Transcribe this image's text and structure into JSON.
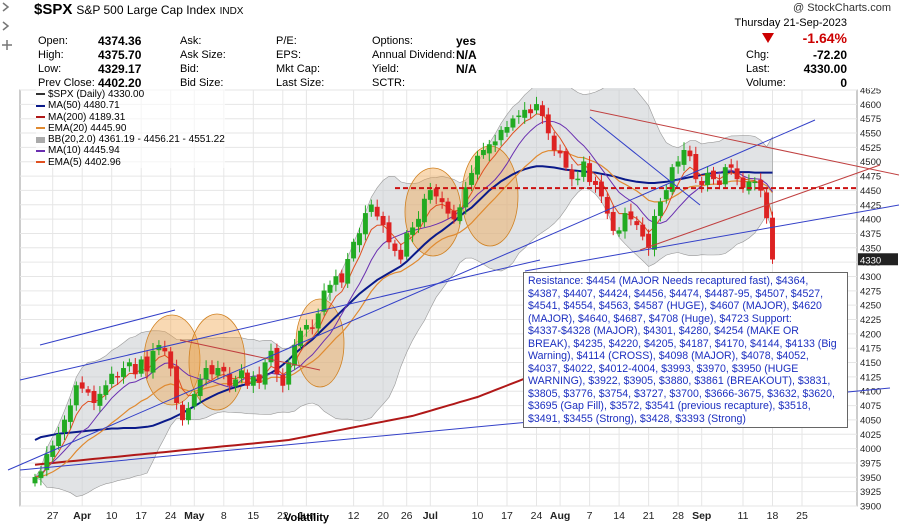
{
  "header": {
    "symbol": "$SPX",
    "name": "S&P 500 Large Cap Index",
    "exchange": "INDX",
    "copyright": "@ StockCharts.com",
    "date": "Thursday  21-Sep-2023",
    "change_pct": "-1.64%",
    "fields": {
      "open_label": "Open:",
      "open_value": "4374.36",
      "high_label": "High:",
      "high_value": "4375.70",
      "low_label": "Low:",
      "low_value": "4329.17",
      "prevclose_label": "Prev Close:",
      "prevclose_value": "4402.20",
      "ask_label": "Ask:",
      "asksize_label": "Ask Size:",
      "bid_label": "Bid:",
      "bidsize_label": "Bid Size:",
      "pe_label": "P/E:",
      "eps_label": "EPS:",
      "mktcap_label": "Mkt Cap:",
      "lastsize_label": "Last Size:",
      "options_label": "Options:",
      "options_value": "yes",
      "dividend_label": "Annual Dividend:",
      "dividend_value": "N/A",
      "yield_label": "Yield:",
      "yield_value": "N/A",
      "sctr_label": "SCTR:",
      "chg_label": "Chg:",
      "chg_value": "-72.20",
      "last_label": "Last:",
      "last_value": "4330.00",
      "volume_label": "Volume:",
      "volume_value": "0"
    }
  },
  "legend": {
    "symbol": "$SPX (Daily) 4330.00",
    "ma50": "MA(50) 4480.71",
    "ma200": "MA(200) 4189.31",
    "ema20": "EMA(20) 4445.90",
    "bb": "BB(20,2.0) 4361.19 - 4456.21 - 4551.22",
    "ma10": "MA(10) 4445.94",
    "ema5": "EMA(5) 4402.96"
  },
  "annotation_box": "Resistance: $4454 (MAJOR Needs recaptured fast), $4364, $4387, $4407, $4424, $4456, $4474, $4487-95, $4507, $4527, $4541, $4554, $4563, $4587 (HUGE), $4607 (MAJOR), $4620 (MAJOR), $4640, $4687, $4708 (Huge), $4723 Support: $4337-$4328 (MAJOR), $4301, $4280, $4254 (MAKE OR BREAK), $4235, $4220, $4205, $4187, $4170, $4144, $4133 (Big Warning), $4114 (CROSS), $4098 (MAJOR), $4078, $4052, $4037, $4022, $4012-4004, $3993, $3970, $3950 (HUGE WARNING), $3922, $3905, $3880, $3861 (BREAKOUT), $3831, $3805, $3776, $3754, $3727, $3700, $3666-3675, $3632, $3620, $3695 (Gap Fill), $3572, $3541 (previous recapture), $3518, $3491, $3455 (Strong), $3428, $3393 (Strong)",
  "volatility_label": "Volatility",
  "colors": {
    "up": "#22aa22",
    "down": "#dd2222",
    "ma50": "#0a1a8a",
    "ma200": "#b01818",
    "ema20": "#e08a30",
    "bb": "#999999",
    "ma10": "#6a2fb0",
    "ema5": "#e05020",
    "trend_blue": "#3340c8",
    "trend_red": "#c04040",
    "circle": "#f0a040"
  },
  "chart_data": {
    "type": "candlestick",
    "title": "$SPX (Daily) 4330.00",
    "ylim": [
      3900,
      4625
    ],
    "y_ticks": [
      3900,
      3925,
      3950,
      3975,
      4000,
      4025,
      4050,
      4075,
      4100,
      4125,
      4150,
      4175,
      4200,
      4225,
      4250,
      4275,
      4300,
      4325,
      4350,
      4375,
      4400,
      4425,
      4450,
      4475,
      4500,
      4525,
      4550,
      4575,
      4600,
      4625
    ],
    "x_tick_labels": [
      "27",
      "Apr",
      "10",
      "17",
      "24",
      "May",
      "8",
      "15",
      "22",
      "Jun",
      "12",
      "20",
      "26",
      "Jul",
      "10",
      "17",
      "24",
      "Aug",
      "7",
      "14",
      "21",
      "28",
      "Sep",
      "11",
      "18",
      "25"
    ],
    "x_tick_index": [
      3,
      8,
      13,
      18,
      23,
      27,
      32,
      37,
      42,
      46,
      54,
      59,
      63,
      67,
      75,
      80,
      85,
      89,
      94,
      99,
      104,
      109,
      113,
      120,
      125,
      130
    ],
    "closes": [
      3950,
      3960,
      3990,
      4005,
      4025,
      4050,
      4075,
      4110,
      4105,
      4098,
      4080,
      4095,
      4110,
      4130,
      4125,
      4140,
      4150,
      4130,
      4155,
      4135,
      4170,
      4180,
      4170,
      4140,
      4080,
      4050,
      4070,
      4095,
      4120,
      4140,
      4130,
      4140,
      4135,
      4110,
      4120,
      4136,
      4110,
      4125,
      4115,
      4150,
      4170,
      4130,
      4110,
      4150,
      4180,
      4205,
      4215,
      4210,
      4235,
      4275,
      4285,
      4300,
      4290,
      4330,
      4360,
      4375,
      4410,
      4425,
      4405,
      4390,
      4360,
      4345,
      4330,
      4375,
      4385,
      4400,
      4435,
      4450,
      4440,
      4430,
      4410,
      4400,
      4420,
      4455,
      4480,
      4510,
      4520,
      4530,
      4535,
      4555,
      4560,
      4575,
      4580,
      4590,
      4585,
      4600,
      4580,
      4550,
      4520,
      4515,
      4490,
      4470,
      4470,
      4500,
      4465,
      4460,
      4440,
      4410,
      4380,
      4380,
      4410,
      4400,
      4390,
      4370,
      4350,
      4405,
      4430,
      4450,
      4490,
      4500,
      4520,
      4510,
      4470,
      4460,
      4480,
      4470,
      4460,
      4490,
      4490,
      4470,
      4455,
      4465,
      4465,
      4450,
      4402,
      4330
    ],
    "ma50": [
      4015,
      4020,
      4022,
      4024,
      4026,
      4027,
      4028,
      4029,
      4030,
      4031,
      4032,
      4033,
      4034,
      4035,
      4035,
      4036,
      4036,
      4036,
      4037,
      4038,
      4040,
      4044,
      4048,
      4052,
      4057,
      4062,
      4068,
      4074,
      4080,
      4086,
      4091,
      4096,
      4100,
      4104,
      4107,
      4110,
      4113,
      4117,
      4122,
      4127,
      4132,
      4138,
      4146,
      4155,
      4165,
      4174,
      4182,
      4190,
      4200,
      4210,
      4220,
      4230,
      4240,
      4250,
      4260,
      4270,
      4278,
      4286,
      4294,
      4300,
      4306,
      4312,
      4318,
      4326,
      4336,
      4346,
      4356,
      4365,
      4373,
      4380,
      4388,
      4396,
      4405,
      4413,
      4420,
      4430,
      4440,
      4450,
      4458,
      4466,
      4472,
      4478,
      4483,
      4487,
      4490,
      4492,
      4492,
      4491,
      4490,
      4488,
      4486,
      4485,
      4484,
      4483,
      4482,
      4481,
      4479,
      4477,
      4475,
      4472,
      4469,
      4467,
      4465,
      4464,
      4463,
      4463,
      4464,
      4465,
      4467,
      4469,
      4471,
      4473,
      4475,
      4477,
      4479,
      4480,
      4481,
      4482,
      4482,
      4482,
      4482,
      4482,
      4481,
      4481,
      4481,
      4481
    ],
    "ma200": [
      3972,
      3973,
      3974,
      3975,
      3976,
      3977,
      3978,
      3979,
      3980,
      3981,
      3982,
      3983,
      3984,
      3985,
      3986,
      3987,
      3988,
      3989,
      3990,
      3991,
      3992,
      3993,
      3994,
      3995,
      3996,
      3997,
      3998,
      3999,
      4000,
      4001,
      4002,
      4003,
      4004,
      4005,
      4006,
      4007,
      4008,
      4009,
      4010,
      4011,
      4012,
      4013,
      4014,
      4015,
      4017,
      4019,
      4021,
      4023,
      4025,
      4027,
      4029,
      4031,
      4033,
      4035,
      4037,
      4039,
      4041,
      4043,
      4045,
      4047,
      4049,
      4051,
      4053,
      4055,
      4057,
      4060,
      4063,
      4066,
      4069,
      4072,
      4075,
      4078,
      4081,
      4084,
      4087,
      4090,
      4094,
      4098,
      4102,
      4106,
      4110,
      4114,
      4118,
      4122,
      4126,
      4130,
      4134,
      4138,
      4142,
      4145,
      4148,
      4151,
      4154,
      4157,
      4160,
      4162,
      4164,
      4166,
      4168,
      4170,
      4172,
      4173,
      4174,
      4175,
      4176,
      4177,
      4178,
      4179,
      4180,
      4181,
      4182,
      4183,
      4184,
      4185,
      4186,
      4187,
      4188,
      4188,
      4188,
      4189,
      4189,
      4189,
      4189,
      4189,
      4189,
      4189
    ]
  }
}
